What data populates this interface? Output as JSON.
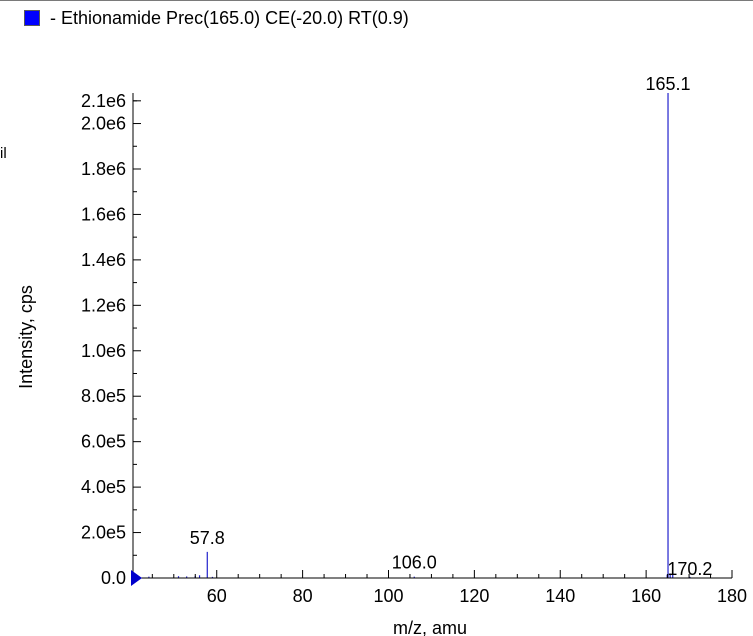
{
  "legend": {
    "label": "- Ethionamide Prec(165.0) CE(-20.0) RT(0.9)",
    "swatch_color": "#0000ff"
  },
  "side_glyph": "il",
  "colors": {
    "series": "#2222cc",
    "axis": "#000000",
    "marker": "#0000cc"
  },
  "chart_data": {
    "type": "bar",
    "title": "",
    "xlabel": "m/z, amu",
    "ylabel": "Intensity, cps",
    "xlim": [
      40.5,
      180
    ],
    "ylim": [
      0,
      2130000.0
    ],
    "xticks": [
      {
        "value": 60,
        "label": "60"
      },
      {
        "value": 80,
        "label": "80"
      },
      {
        "value": 100,
        "label": "100"
      },
      {
        "value": 120,
        "label": "120"
      },
      {
        "value": 140,
        "label": "140"
      },
      {
        "value": 160,
        "label": "160"
      },
      {
        "value": 180,
        "label": "180"
      }
    ],
    "yticks": [
      {
        "value": 0,
        "label": "0.0"
      },
      {
        "value": 200000,
        "label": "2.0e5"
      },
      {
        "value": 400000,
        "label": "4.0e5"
      },
      {
        "value": 600000,
        "label": "6.0e5"
      },
      {
        "value": 800000,
        "label": "8.0e5"
      },
      {
        "value": 1000000,
        "label": "1.0e6"
      },
      {
        "value": 1200000,
        "label": "1.2e6"
      },
      {
        "value": 1400000,
        "label": "1.4e6"
      },
      {
        "value": 1600000,
        "label": "1.6e6"
      },
      {
        "value": 1800000,
        "label": "1.8e6"
      },
      {
        "value": 2000000,
        "label": "2.0e6"
      },
      {
        "value": 2100000,
        "label": "2.1e6"
      }
    ],
    "peaks": [
      {
        "x": 44.2,
        "y": 6000
      },
      {
        "x": 51.1,
        "y": 8000
      },
      {
        "x": 53.0,
        "y": 7000
      },
      {
        "x": 55.0,
        "y": 9000
      },
      {
        "x": 56.0,
        "y": 12000
      },
      {
        "x": 57.8,
        "y": 115000
      },
      {
        "x": 59.0,
        "y": 5000
      },
      {
        "x": 106.0,
        "y": 6000
      },
      {
        "x": 164.9,
        "y": 15000
      },
      {
        "x": 165.1,
        "y": 2200000
      },
      {
        "x": 165.6,
        "y": 20000
      },
      {
        "x": 166.2,
        "y": 14000
      },
      {
        "x": 170.2,
        "y": 5000
      }
    ],
    "annotations": [
      {
        "x": 165.1,
        "label": "165.1"
      },
      {
        "x": 57.8,
        "label": "57.8"
      },
      {
        "x": 106.0,
        "label": "106.0"
      },
      {
        "x": 170.2,
        "label": "170.2"
      }
    ],
    "legend": [
      "- Ethionamide Prec(165.0) CE(-20.0) RT(0.9)"
    ]
  }
}
